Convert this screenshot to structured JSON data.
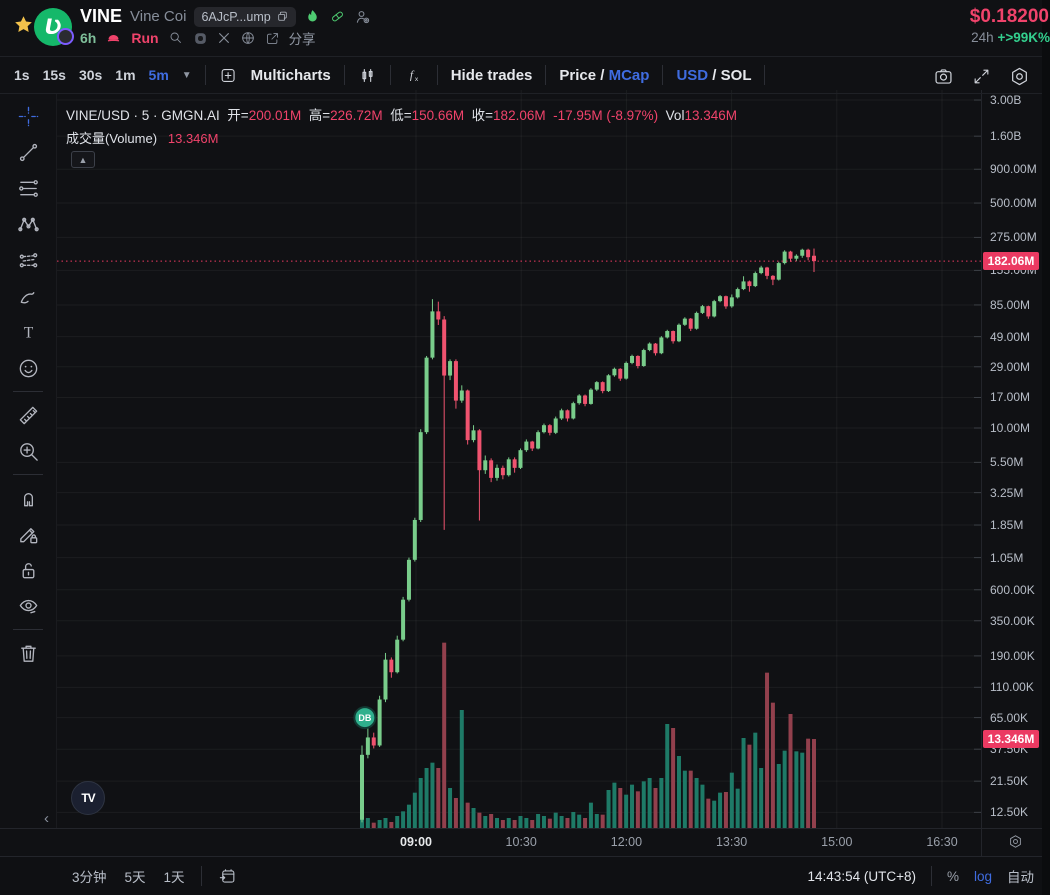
{
  "header": {
    "token_symbol": "VINE",
    "token_name": "Vine Coi",
    "contract_badge": "6AJcP...ump",
    "age": "6h",
    "run_label": "Run",
    "share_label": "分享",
    "price": "$0.18200",
    "change_label": "24h",
    "change_value": "+>99K%"
  },
  "toolbar": {
    "intervals": [
      "1s",
      "15s",
      "30s",
      "1m",
      "5m"
    ],
    "active_interval": "5m",
    "multicharts_label": "Multicharts",
    "hide_trades_label": "Hide trades",
    "price_mcap": {
      "left": "Price",
      "sep": "/",
      "right": "MCap",
      "active": "MCap"
    },
    "usd_sol": {
      "left": "USD",
      "sep": "/",
      "right": "SOL",
      "active": "USD"
    }
  },
  "legend": {
    "title": "VINE/USD · 5 · GMGN.AI",
    "open_label": "开=",
    "open": "200.01M",
    "high_label": "高=",
    "high": "226.72M",
    "low_label": "低=",
    "low": "150.66M",
    "close_label": "收=",
    "close": "182.06M",
    "change": "-17.95M (-8.97%)",
    "vol_label": "Vol",
    "vol": "13.346M",
    "volume_row_label": "成交量(Volume)",
    "volume_row_value": "13.346M"
  },
  "left_toolbar": {
    "groups": [
      [
        "crosshair",
        "trend-line",
        "fib-retracement",
        "xabcd-pattern",
        "projection",
        "brush",
        "text",
        "emoji"
      ],
      [
        "ruler",
        "zoom-in"
      ],
      [
        "magnet",
        "draw-lock",
        "lock-all",
        "hide-drawings"
      ],
      [
        "remove-objects"
      ]
    ],
    "active_tool": "crosshair"
  },
  "price_axis": {
    "ticks": [
      {
        "label": "3.00B",
        "m": 3000
      },
      {
        "label": "1.60B",
        "m": 1600
      },
      {
        "label": "900.00M",
        "m": 900
      },
      {
        "label": "500.00M",
        "m": 500
      },
      {
        "label": "275.00M",
        "m": 275
      },
      {
        "label": "155.00M",
        "m": 155
      },
      {
        "label": "85.00M",
        "m": 85
      },
      {
        "label": "49.00M",
        "m": 49
      },
      {
        "label": "29.00M",
        "m": 29
      },
      {
        "label": "17.00M",
        "m": 17
      },
      {
        "label": "10.00M",
        "m": 10
      },
      {
        "label": "5.50M",
        "m": 5.5
      },
      {
        "label": "3.25M",
        "m": 3.25
      },
      {
        "label": "1.85M",
        "m": 1.85
      },
      {
        "label": "1.05M",
        "m": 1.05
      },
      {
        "label": "600.00K",
        "m": 0.6
      },
      {
        "label": "350.00K",
        "m": 0.35
      },
      {
        "label": "190.00K",
        "m": 0.19
      },
      {
        "label": "110.00K",
        "m": 0.11
      },
      {
        "label": "65.00K",
        "m": 0.065
      },
      {
        "label": "37.50K",
        "m": 0.0375
      },
      {
        "label": "21.50K",
        "m": 0.0215
      },
      {
        "label": "12.50K",
        "m": 0.0125
      }
    ],
    "price_badge": "182.06M",
    "volume_badge": "13.346M"
  },
  "time_axis": {
    "ticks": [
      "09:00",
      "10:30",
      "12:00",
      "13:30",
      "15:00",
      "16:30"
    ],
    "bold_tick": "09:00"
  },
  "bottom_bar": {
    "ranges": [
      "3分钟",
      "5天",
      "1天"
    ],
    "clock": "14:43:54 (UTC+8)",
    "percent": "%",
    "log": "log",
    "auto": "自动"
  },
  "tv_logo": {
    "label": "TV"
  },
  "chart_data": {
    "type": "candlestick",
    "symbol": "VINE/USD",
    "interval": "5m",
    "start_time": "08:15",
    "unit": "market cap, millions USD",
    "log_scale": true,
    "current_price_m": 182.06,
    "current_volume_m": 13.346,
    "marker": {
      "label": "DB",
      "candle_index": 1,
      "value_m": 0.065
    },
    "colors": {
      "up": "#79cd8b",
      "down": "#f0536f",
      "vol_up": "#1e7a67",
      "vol_down": "#92404d",
      "price_line": "#eb3a62",
      "badge": "#eb3a62",
      "accent_blue": "#3f6ce0",
      "accent_red": "#f0436b",
      "change_green": "#33cf8e"
    },
    "candles": [
      [
        0.011,
        0.04,
        0.0105,
        0.034
      ],
      [
        0.034,
        0.07,
        0.032,
        0.046
      ],
      [
        0.046,
        0.05,
        0.038,
        0.04
      ],
      [
        0.04,
        0.095,
        0.039,
        0.089
      ],
      [
        0.089,
        0.2,
        0.085,
        0.178
      ],
      [
        0.178,
        0.185,
        0.13,
        0.143
      ],
      [
        0.143,
        0.27,
        0.14,
        0.252
      ],
      [
        0.252,
        0.53,
        0.245,
        0.505
      ],
      [
        0.505,
        1.05,
        0.49,
        1.01
      ],
      [
        1.01,
        2.1,
        0.98,
        2.02
      ],
      [
        2.02,
        9.8,
        1.95,
        9.3
      ],
      [
        9.3,
        35,
        9,
        34
      ],
      [
        34,
        94,
        33,
        76
      ],
      [
        76,
        90,
        60,
        66
      ],
      [
        66,
        70,
        1.7,
        24.9
      ],
      [
        24.9,
        33,
        23,
        32
      ],
      [
        32,
        33,
        14,
        16.1
      ],
      [
        16.1,
        21,
        15.5,
        19.2
      ],
      [
        19.2,
        19.5,
        7.5,
        8.1
      ],
      [
        8.1,
        10.5,
        7.8,
        9.6
      ],
      [
        9.6,
        9.8,
        2,
        4.8
      ],
      [
        4.8,
        6.2,
        4.5,
        5.7
      ],
      [
        5.7,
        5.9,
        3.9,
        4.2
      ],
      [
        4.2,
        5.3,
        4,
        5
      ],
      [
        5,
        5.2,
        4.1,
        4.4
      ],
      [
        4.4,
        6,
        4.3,
        5.8
      ],
      [
        5.8,
        6,
        4.6,
        5
      ],
      [
        5,
        7,
        4.9,
        6.8
      ],
      [
        6.8,
        8.2,
        6.6,
        7.9
      ],
      [
        7.9,
        8,
        6.7,
        7
      ],
      [
        7,
        9.6,
        6.9,
        9.3
      ],
      [
        9.3,
        10.8,
        9.1,
        10.5
      ],
      [
        10.5,
        10.7,
        8.8,
        9.2
      ],
      [
        9.2,
        12.2,
        9,
        11.8
      ],
      [
        11.8,
        14,
        11.5,
        13.6
      ],
      [
        13.6,
        13.8,
        11.2,
        11.8
      ],
      [
        11.8,
        15.8,
        11.6,
        15.4
      ],
      [
        15.4,
        18,
        15,
        17.6
      ],
      [
        17.6,
        17.9,
        14.6,
        15.2
      ],
      [
        15.2,
        20,
        15,
        19.5
      ],
      [
        19.5,
        22.6,
        19,
        22.2
      ],
      [
        22.2,
        22.5,
        18.3,
        19
      ],
      [
        19,
        25.5,
        18.7,
        25
      ],
      [
        25,
        28.6,
        24.4,
        28
      ],
      [
        28,
        28.3,
        22.7,
        23.6
      ],
      [
        23.6,
        31.8,
        23.2,
        31
      ],
      [
        31,
        35.8,
        30.3,
        35
      ],
      [
        35,
        35.4,
        28.2,
        29.4
      ],
      [
        29.4,
        39.7,
        29,
        38.8
      ],
      [
        38.8,
        44.3,
        38,
        43.4
      ],
      [
        43.4,
        43.9,
        35.3,
        36.7
      ],
      [
        36.7,
        49.4,
        36.1,
        48.3
      ],
      [
        48.3,
        55.2,
        47.4,
        54
      ],
      [
        54,
        54.5,
        43.4,
        45.2
      ],
      [
        45.2,
        61.6,
        44.5,
        60.2
      ],
      [
        60.2,
        68.6,
        59,
        67
      ],
      [
        67,
        67.7,
        54,
        56.2
      ],
      [
        56.2,
        75.7,
        55.3,
        74
      ],
      [
        74,
        85,
        72.6,
        83.2
      ],
      [
        83.2,
        84,
        66.8,
        69.6
      ],
      [
        69.6,
        92.9,
        68.4,
        90.8
      ],
      [
        90.8,
        101,
        89,
        99
      ],
      [
        99,
        100,
        79.5,
        82.9
      ],
      [
        82.9,
        102,
        81,
        97
      ],
      [
        97,
        115,
        95,
        112
      ],
      [
        112,
        140,
        110,
        128
      ],
      [
        128,
        130,
        107,
        118
      ],
      [
        118,
        152,
        116,
        148
      ],
      [
        148,
        168,
        145,
        163
      ],
      [
        163,
        165,
        133,
        141
      ],
      [
        141,
        143,
        120,
        132
      ],
      [
        132,
        180,
        130,
        176
      ],
      [
        176,
        220,
        172,
        215
      ],
      [
        215,
        218,
        180,
        190
      ],
      [
        190,
        205,
        182,
        200
      ],
      [
        200,
        226,
        193,
        222
      ],
      [
        222,
        226,
        185,
        195
      ],
      [
        200.01,
        226.72,
        150.66,
        182.06
      ]
    ],
    "volumes": [
      6,
      1.5,
      0.8,
      1.2,
      1.5,
      0.9,
      1.8,
      2.5,
      3.5,
      5.3,
      7.5,
      9,
      9.8,
      9,
      27.8,
      6,
      4.5,
      17.7,
      3.8,
      3,
      2.3,
      1.8,
      2.1,
      1.5,
      1.2,
      1.5,
      1.2,
      1.8,
      1.5,
      1.2,
      2.1,
      1.8,
      1.4,
      2.3,
      1.8,
      1.5,
      2.4,
      2,
      1.5,
      3.8,
      2.1,
      2,
      5.7,
      6.8,
      6,
      5,
      6.5,
      5.5,
      7,
      7.5,
      6,
      7.5,
      15.6,
      15,
      10.8,
      8.6,
      8.6,
      7.5,
      6.5,
      4.4,
      4.1,
      5.3,
      5.4,
      8.3,
      5.9,
      13.5,
      12.5,
      14.3,
      9,
      23.3,
      18.8,
      9.6,
      11.6,
      17.1,
      11.5,
      11.3,
      13.4,
      13.346
    ]
  }
}
